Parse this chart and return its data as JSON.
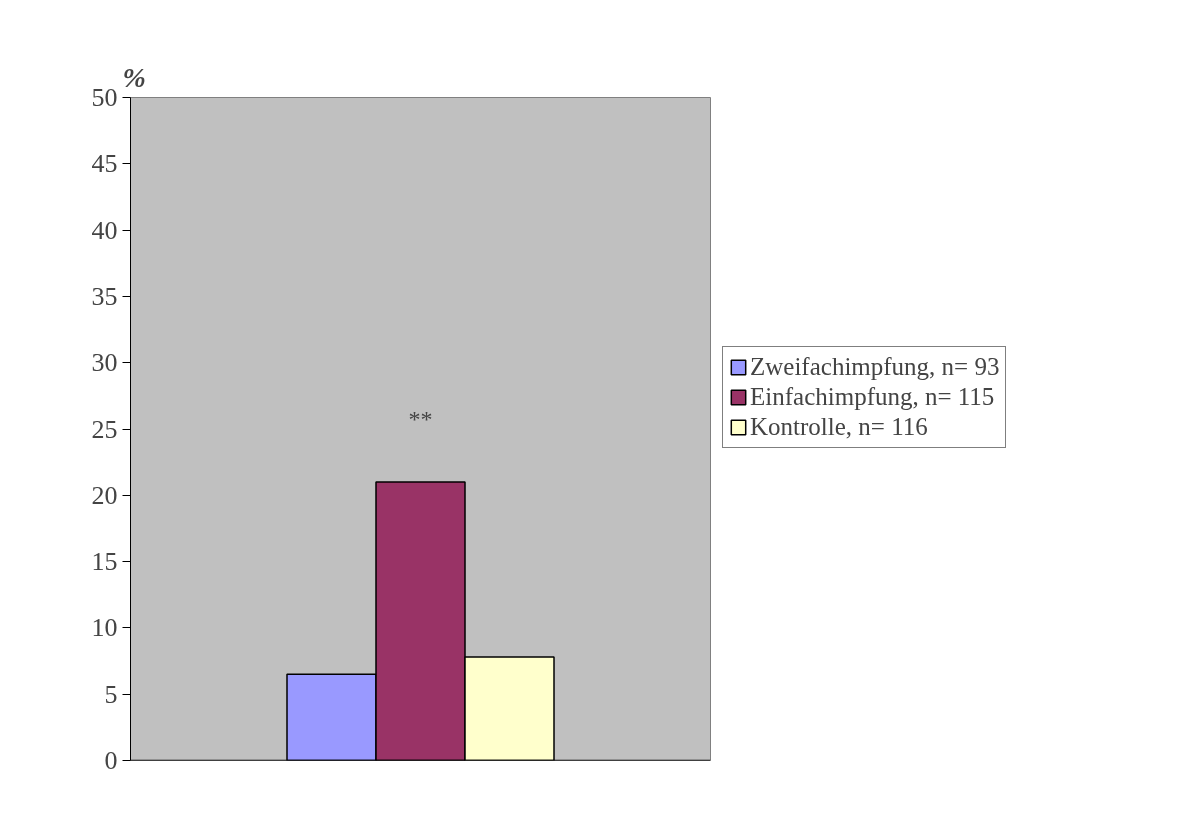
{
  "chart_data": {
    "type": "bar",
    "ylabel": "%",
    "categories": [
      null
    ],
    "series": [
      {
        "name": "Zweifachimpfung, n= 93",
        "color": "#9999ff",
        "values": [
          6.5
        ]
      },
      {
        "name": "Einfachimpfung, n= 115",
        "color": "#993366",
        "values": [
          21
        ]
      },
      {
        "name": "Kontrolle, n= 116",
        "color": "#ffffcc",
        "values": [
          7.8
        ]
      }
    ],
    "ylim": [
      0,
      50
    ],
    "yticks": [
      0,
      5,
      10,
      15,
      20,
      25,
      30,
      35,
      40,
      45,
      50
    ],
    "annotations": [
      "**"
    ],
    "grid": false,
    "legend": "right",
    "tick_labels": "y"
  }
}
